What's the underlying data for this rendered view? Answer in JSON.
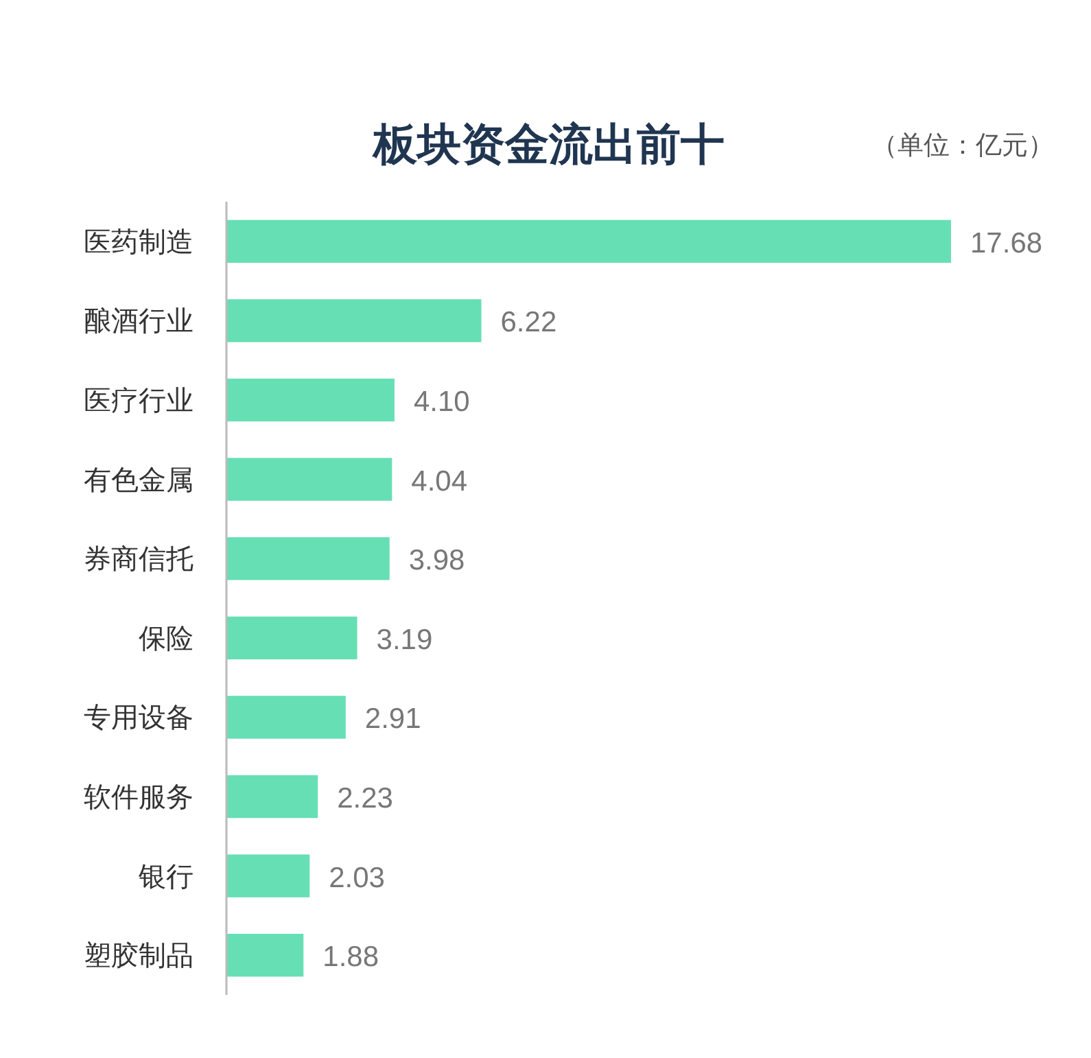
{
  "chart_data": {
    "type": "bar",
    "orientation": "horizontal",
    "title": "板块资金流出前十",
    "subtitle": "（单位：亿元）",
    "categories": [
      "医药制造",
      "酿酒行业",
      "医疗行业",
      "有色金属",
      "券商信托",
      "保险",
      "专用设备",
      "软件服务",
      "银行",
      "塑胶制品"
    ],
    "values": [
      17.68,
      6.22,
      4.1,
      4.04,
      3.98,
      3.19,
      2.91,
      2.23,
      2.03,
      1.88
    ],
    "color": "#66dfb5",
    "value_labels": [
      "17.68",
      "6.22",
      "4.10",
      "4.04",
      "3.98",
      "3.19",
      "2.91",
      "2.23",
      "2.03",
      "1.88"
    ]
  }
}
